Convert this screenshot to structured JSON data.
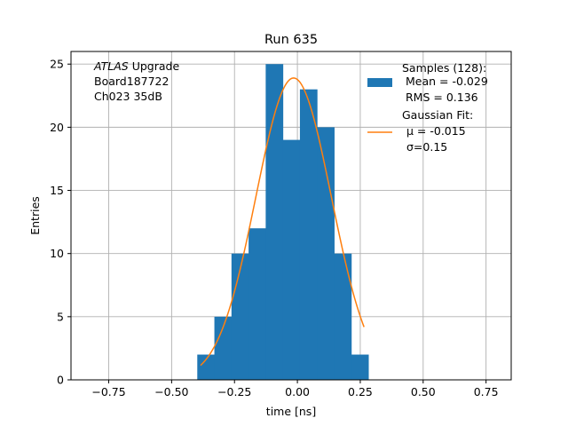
{
  "chart_data": {
    "type": "bar",
    "title": "Run 635",
    "xlabel": "time [ns]",
    "ylabel": "Entries",
    "xlim": [
      -0.9,
      0.85
    ],
    "ylim": [
      0,
      26
    ],
    "xticks": [
      -0.75,
      -0.5,
      -0.25,
      0.0,
      0.25,
      0.5,
      0.75
    ],
    "xtick_labels": [
      "−0.75",
      "−0.50",
      "−0.25",
      "0.00",
      "0.25",
      "0.50",
      "0.75"
    ],
    "yticks": [
      0,
      5,
      10,
      15,
      20,
      25
    ],
    "ytick_labels": [
      "0",
      "5",
      "10",
      "15",
      "20",
      "25"
    ],
    "grid": true,
    "legend_position": "top-right",
    "annotation": {
      "line1_italic": "ATLAS",
      "line1_rest": " Upgrade",
      "line2": "Board187722",
      "line3": "Ch023 35dB"
    },
    "series": [
      {
        "kind": "histogram",
        "color": "#1f77b4",
        "legend_lines": [
          "Samples (128):",
          "Mean = -0.029",
          "RMS = 0.136"
        ],
        "bin_edges": [
          -0.398,
          -0.33,
          -0.262,
          -0.194,
          -0.126,
          -0.058,
          0.01,
          0.078,
          0.146,
          0.214,
          0.282
        ],
        "counts": [
          2,
          5,
          10,
          12,
          25,
          19,
          23,
          20,
          10,
          2
        ]
      },
      {
        "kind": "line",
        "color": "#ff7f0e",
        "legend_lines": [
          "Gaussian Fit:",
          "μ = -0.015",
          "σ=0.15"
        ],
        "x_range": [
          -0.385,
          0.265
        ],
        "amplitude": 23.9,
        "mu": -0.015,
        "sigma": 0.15
      }
    ]
  }
}
